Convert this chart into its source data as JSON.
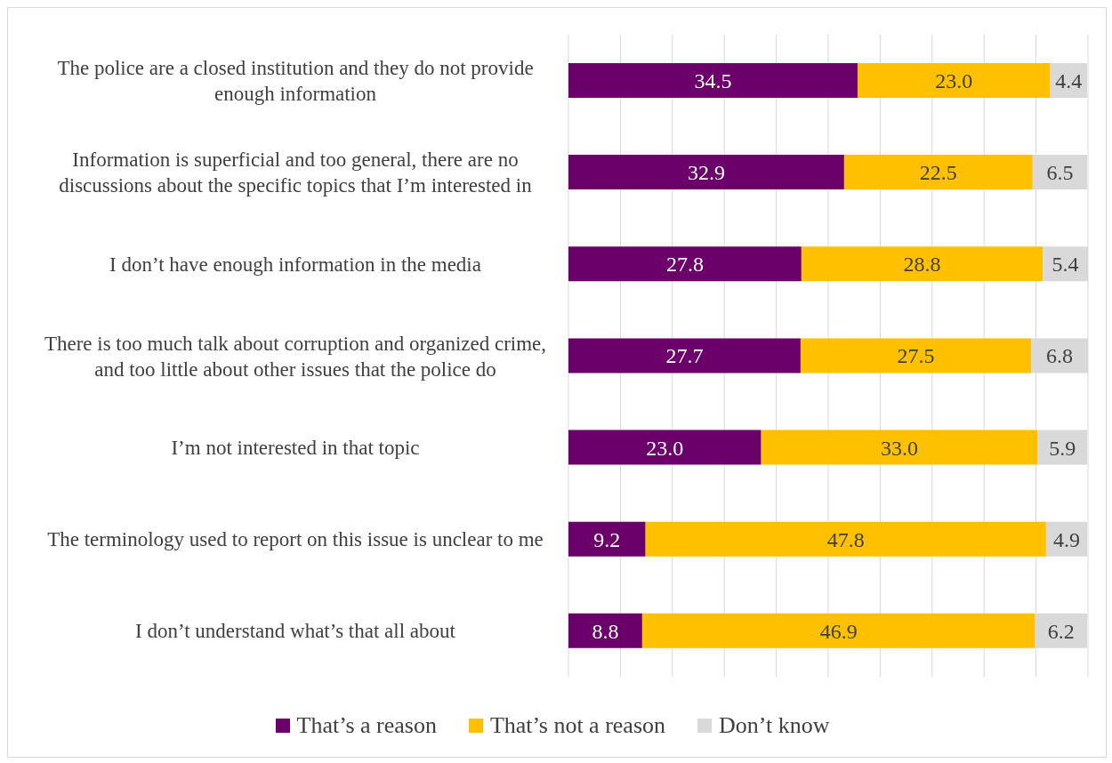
{
  "chart_data": {
    "type": "bar",
    "orientation": "horizontal",
    "stacked": true,
    "grid": "x",
    "legend": "bottom",
    "tick_labels": "y",
    "categories": [
      "The police are a closed institution and they do not provide enough information",
      "Information is superficial and too general, there are no discussions about the specific topics that I’m interested in",
      "I don’t have enough information in the media",
      "There is too much talk about corruption and organized crime, and too little about other issues that the police do",
      "I’m not interested in that topic",
      "The terminology used to report on this issue is unclear to me",
      "I don’t understand what’s that all about"
    ],
    "series": [
      {
        "name": "That’s a reason",
        "color": "#6b006b",
        "values": [
          34.5,
          32.9,
          27.8,
          27.7,
          23.0,
          9.2,
          8.8
        ],
        "value_labels": [
          "34.5",
          "32.9",
          "27.8",
          "27.7",
          "23.0",
          "9.2",
          "8.8"
        ]
      },
      {
        "name": "That’s not a reason",
        "color": "#ffc000",
        "values": [
          23.0,
          22.5,
          28.8,
          27.5,
          33.0,
          47.8,
          46.9
        ],
        "value_labels": [
          "23.0",
          "22.5",
          "28.8",
          "27.5",
          "33.0",
          "47.8",
          "46.9"
        ]
      },
      {
        "name": "Don’t know",
        "color": "#d9d9d9",
        "values": [
          4.4,
          6.5,
          5.4,
          6.8,
          5.9,
          4.9,
          6.2
        ],
        "value_labels": [
          "4.4",
          "6.5",
          "5.4",
          "6.8",
          "5.9",
          "4.9",
          "6.2"
        ]
      }
    ],
    "xlim": [
      0,
      62
    ],
    "xticks": [
      {
        "value": 0,
        "label": null
      },
      {
        "value": 6.2,
        "label": null
      },
      {
        "value": 12.4,
        "label": null
      },
      {
        "value": 18.6,
        "label": null
      },
      {
        "value": 24.8,
        "label": null
      },
      {
        "value": 31,
        "label": null
      },
      {
        "value": 37.2,
        "label": null
      },
      {
        "value": 43.4,
        "label": null
      },
      {
        "value": 49.6,
        "label": null
      },
      {
        "value": 55.8,
        "label": null
      },
      {
        "value": 62,
        "label": null
      }
    ]
  }
}
